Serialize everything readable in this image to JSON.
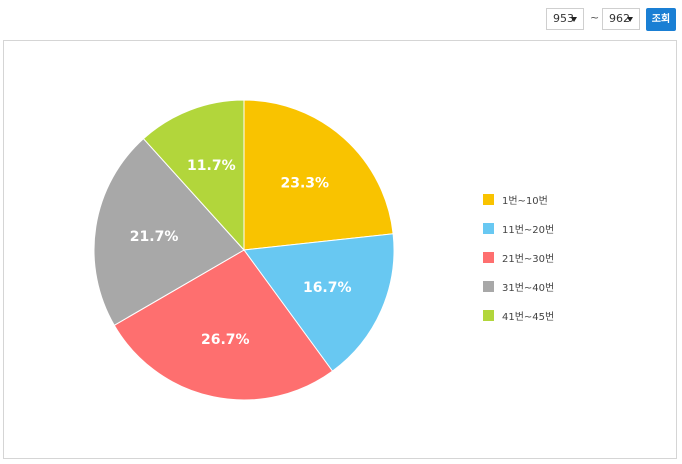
{
  "controls": {
    "from_value": "953",
    "to_value": "962",
    "separator": "~",
    "query_label": "조회"
  },
  "chart_data": {
    "type": "pie",
    "categories": [
      "1번~10번",
      "11번~20번",
      "21번~30번",
      "31번~40번",
      "41번~45번"
    ],
    "values": [
      23.3,
      16.7,
      26.7,
      21.7,
      11.7
    ],
    "value_labels": [
      "23.3%",
      "16.7%",
      "26.7%",
      "21.7%",
      "11.7%"
    ],
    "colors": [
      "#f9c300",
      "#68c8f2",
      "#fe6f6f",
      "#a8a8a8",
      "#b2d63b"
    ],
    "legend_position": "right"
  }
}
